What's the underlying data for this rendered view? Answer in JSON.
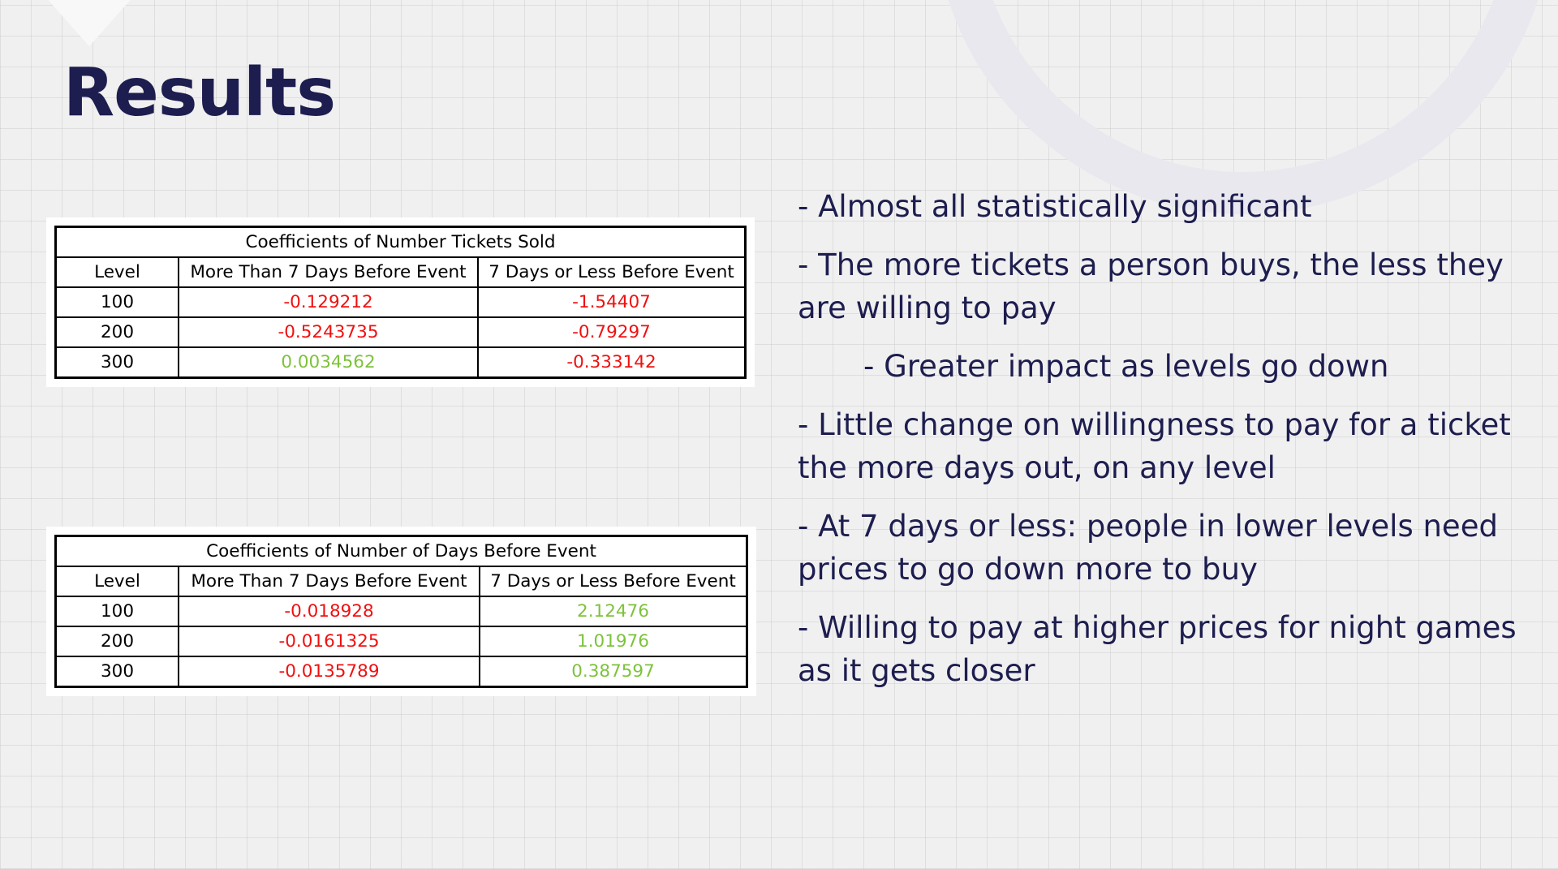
{
  "slide": {
    "title": "Results"
  },
  "tables": [
    {
      "caption": "Coefficients of Number Tickets Sold",
      "headers": [
        "Level",
        "More Than 7 Days Before Event",
        "7 Days or Less Before Event"
      ],
      "rows": [
        [
          "100",
          "-0.129212",
          "-1.54407"
        ],
        [
          "200",
          "-0.5243735",
          "-0.79297"
        ],
        [
          "300",
          "0.0034562",
          "-0.333142"
        ]
      ]
    },
    {
      "caption": "Coefficients of Number of Days Before Event",
      "headers": [
        "Level",
        "More Than 7 Days Before Event",
        "7 Days or Less Before Event"
      ],
      "rows": [
        [
          "100",
          "-0.018928",
          "2.12476"
        ],
        [
          "200",
          "-0.0161325",
          "1.01976"
        ],
        [
          "300",
          "-0.0135789",
          "0.387597"
        ]
      ]
    }
  ],
  "colors": {
    "negative": "#f01010",
    "positive": "#7ec23c",
    "text": "#1d1d4f"
  },
  "bullets": [
    "- Almost all statistically significant",
    "- The more tickets a person buys, the less they are willing to pay",
    "- Greater impact as levels go down",
    "- Little change on willingness to pay for a ticket the more days out, on any level",
    "- At 7 days or less: people in lower levels need prices to go down more to buy",
    "- Willing to pay at higher prices for night games as it gets closer"
  ]
}
